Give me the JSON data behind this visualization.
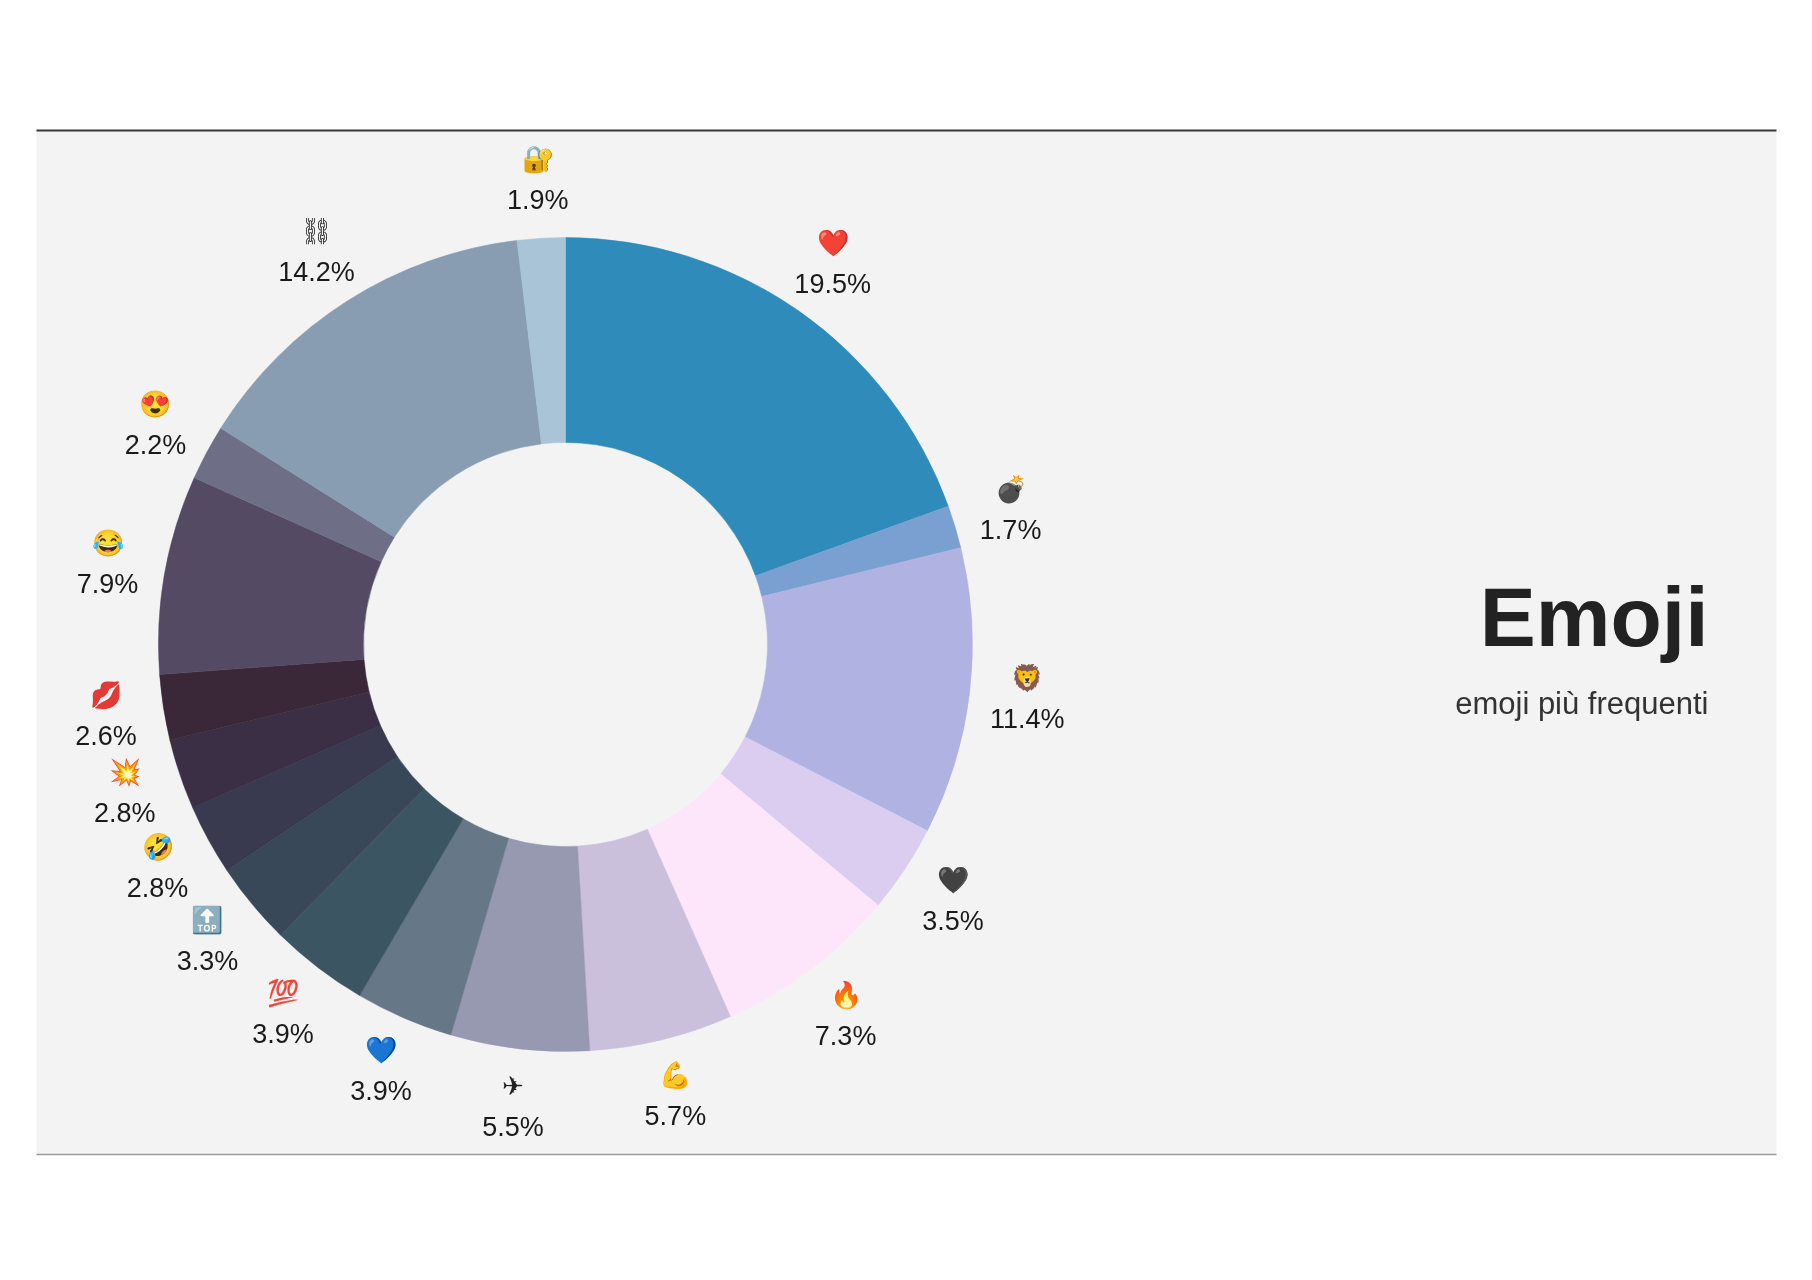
{
  "chart_data": {
    "type": "donut",
    "title": "Emoji",
    "subtitle": "emoji più frequenti",
    "categories": [
      "❤️",
      "💣",
      "🦁",
      "🖤",
      "🔥",
      "💪",
      "✈",
      "💙",
      "💯",
      "🔝",
      "🤣",
      "💥",
      "💋",
      "😂",
      "😍",
      "⛓",
      "🔐"
    ],
    "values": [
      19.5,
      1.7,
      11.4,
      3.5,
      7.3,
      5.7,
      5.5,
      3.9,
      3.9,
      3.3,
      2.8,
      2.8,
      2.6,
      7.9,
      2.2,
      14.2,
      1.9
    ],
    "value_labels": [
      "19.5%",
      "1.7%",
      "11.4%",
      "3.5%",
      "7.3%",
      "5.7%",
      "5.5%",
      "3.9%",
      "3.9%",
      "3.3%",
      "2.8%",
      "2.8%",
      "2.6%",
      "7.9%",
      "2.2%",
      "14.2%",
      "1.9%"
    ],
    "colors": [
      "#2e8bba",
      "#7aa0d2",
      "#b0b3e2",
      "#dbcdf0",
      "#fde6fa",
      "#cbc0dc",
      "#9799b0",
      "#667788",
      "#3c5563",
      "#384858",
      "#393a50",
      "#3a2f45",
      "#3a2838",
      "#544a63",
      "#6e6e87",
      "#889db2",
      "#a8c4d6"
    ]
  }
}
